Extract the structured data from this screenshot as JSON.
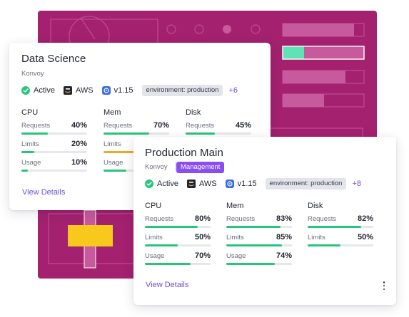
{
  "colors": {
    "backdrop": "#a3216f",
    "accent": "#8a4df1",
    "link": "#6c4fe0",
    "bar_ok": "#27c47c",
    "bar_warn": "#f5a623",
    "active": "#27c47c"
  },
  "icons": {
    "status": "check-circle-icon",
    "provider": "aws-logo-icon",
    "version": "kubernetes-icon",
    "menu": "kebab-menu-icon"
  },
  "cards": [
    {
      "title": "Data Science",
      "subtitle": "Konvoy",
      "status": "Active",
      "provider": "AWS",
      "version": "v1.15",
      "tag": "environment: production",
      "more": "+6",
      "metrics": [
        {
          "name": "CPU",
          "rows": [
            {
              "label": "Requests",
              "value": "40%",
              "level": 0.4
            },
            {
              "label": "Limits",
              "value": "20%",
              "level": 0.2
            },
            {
              "label": "Usage",
              "value": "10%",
              "level": 0.1
            }
          ]
        },
        {
          "name": "Mem",
          "rows": [
            {
              "label": "Requests",
              "value": "70%",
              "level": 0.7
            },
            {
              "label": "Limits",
              "value": "",
              "level": 0.85
            },
            {
              "label": "Usage",
              "value": "",
              "level": 0.35
            }
          ]
        },
        {
          "name": "Disk",
          "rows": [
            {
              "label": "Requests",
              "value": "45%",
              "level": 0.45
            }
          ]
        }
      ],
      "link": "View Details"
    },
    {
      "title": "Production Main",
      "subtitle": "Konvoy",
      "badge": "Management",
      "status": "Active",
      "provider": "AWS",
      "version": "v1.15",
      "tag": "environment: production",
      "more": "+8",
      "metrics": [
        {
          "name": "CPU",
          "rows": [
            {
              "label": "Requests",
              "value": "80%",
              "level": 0.8
            },
            {
              "label": "Limits",
              "value": "50%",
              "level": 0.5
            },
            {
              "label": "Usage",
              "value": "70%",
              "level": 0.7
            }
          ]
        },
        {
          "name": "Mem",
          "rows": [
            {
              "label": "Requests",
              "value": "83%",
              "level": 0.83
            },
            {
              "label": "Limits",
              "value": "85%",
              "level": 0.85
            },
            {
              "label": "Usage",
              "value": "74%",
              "level": 0.74
            }
          ]
        },
        {
          "name": "Disk",
          "rows": [
            {
              "label": "Requests",
              "value": "82%",
              "level": 0.82
            },
            {
              "label": "Limits",
              "value": "50%",
              "level": 0.5
            }
          ]
        }
      ],
      "link": "View Details"
    }
  ]
}
